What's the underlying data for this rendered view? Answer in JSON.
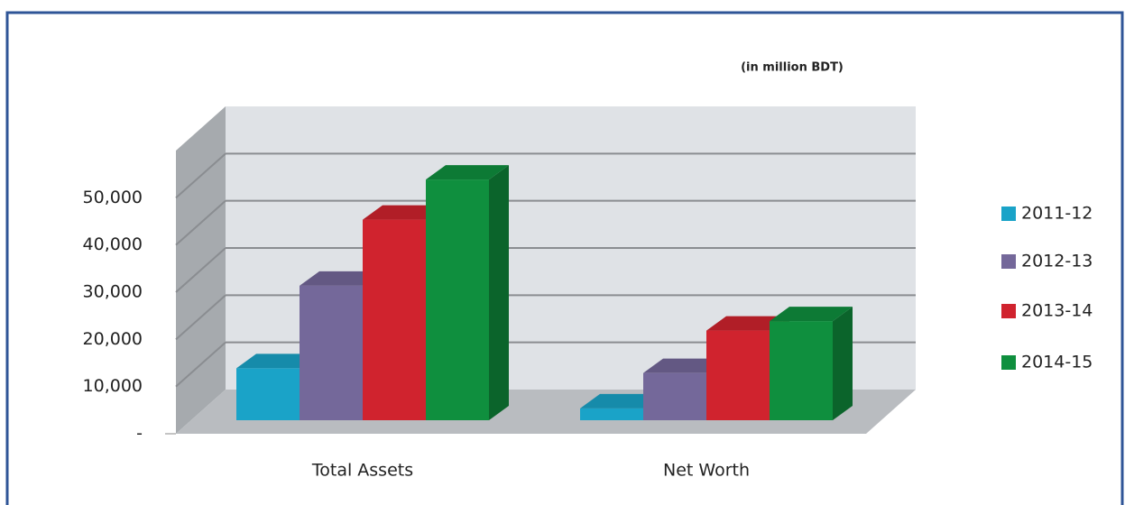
{
  "chart_data": {
    "type": "bar3d",
    "subtitle": "(in million BDT)",
    "categories": [
      "Total Assets",
      "Net Worth"
    ],
    "series": [
      {
        "name": "2011-12",
        "color": "#1aa3c8",
        "values": [
          11000,
          2500
        ]
      },
      {
        "name": "2012-13",
        "color": "#74689a",
        "values": [
          28500,
          10000
        ]
      },
      {
        "name": "2013-14",
        "color": "#d0232e",
        "values": [
          42500,
          19000
        ]
      },
      {
        "name": "2014-15",
        "color": "#0f8f3e",
        "values": [
          51000,
          21000
        ]
      }
    ],
    "ylim": [
      0,
      60000
    ],
    "yticks": [
      {
        "value": 0,
        "label": "-"
      },
      {
        "value": 10000,
        "label": "10,000"
      },
      {
        "value": 20000,
        "label": "20,000"
      },
      {
        "value": 30000,
        "label": "30,000"
      },
      {
        "value": 40000,
        "label": "40,000"
      },
      {
        "value": 50000,
        "label": "50,000"
      }
    ],
    "grid": true,
    "legend": "right"
  }
}
